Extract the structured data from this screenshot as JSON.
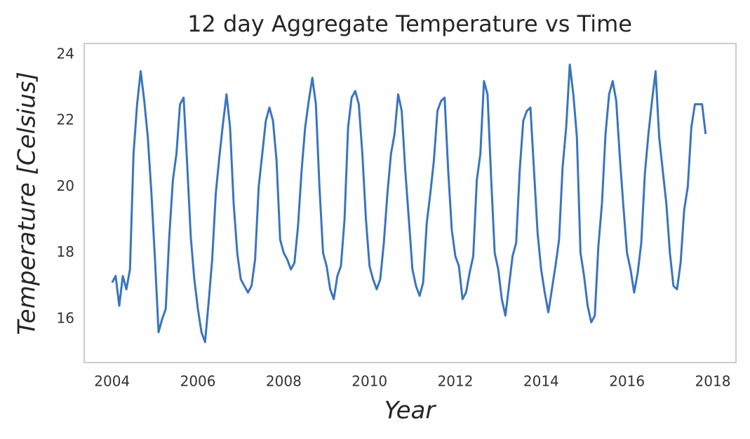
{
  "chart_data": {
    "type": "line",
    "title": "12 day Aggregate Temperature vs Time",
    "xlabel": "Year",
    "ylabel": "Temperature [Celsius]",
    "color": "#3a75be",
    "grid": false,
    "xlim": [
      2003.35,
      2018.54
    ],
    "ylim": [
      14.68,
      24.34
    ],
    "xticks": [
      2004,
      2006,
      2008,
      2010,
      2012,
      2014,
      2016,
      2018
    ],
    "yticks": [
      16,
      18,
      20,
      22,
      24
    ],
    "x": [
      2004.0,
      2004.083,
      2004.167,
      2004.25,
      2004.333,
      2004.417,
      2004.5,
      2004.583,
      2004.667,
      2004.75,
      2004.833,
      2004.917,
      2005.0,
      2005.083,
      2005.167,
      2005.25,
      2005.333,
      2005.417,
      2005.5,
      2005.583,
      2005.667,
      2005.75,
      2005.833,
      2005.917,
      2006.0,
      2006.083,
      2006.167,
      2006.25,
      2006.333,
      2006.417,
      2006.5,
      2006.583,
      2006.667,
      2006.75,
      2006.833,
      2006.917,
      2007.0,
      2007.083,
      2007.167,
      2007.25,
      2007.333,
      2007.417,
      2007.5,
      2007.583,
      2007.667,
      2007.75,
      2007.833,
      2007.917,
      2008.0,
      2008.083,
      2008.167,
      2008.25,
      2008.333,
      2008.417,
      2008.5,
      2008.583,
      2008.667,
      2008.75,
      2008.833,
      2008.917,
      2009.0,
      2009.083,
      2009.167,
      2009.25,
      2009.333,
      2009.417,
      2009.5,
      2009.583,
      2009.667,
      2009.75,
      2009.833,
      2009.917,
      2010.0,
      2010.083,
      2010.167,
      2010.25,
      2010.333,
      2010.417,
      2010.5,
      2010.583,
      2010.667,
      2010.75,
      2010.833,
      2010.917,
      2011.0,
      2011.083,
      2011.167,
      2011.25,
      2011.333,
      2011.417,
      2011.5,
      2011.583,
      2011.667,
      2011.75,
      2011.833,
      2011.917,
      2012.0,
      2012.083,
      2012.167,
      2012.25,
      2012.333,
      2012.417,
      2012.5,
      2012.583,
      2012.667,
      2012.75,
      2012.833,
      2012.917,
      2013.0,
      2013.083,
      2013.167,
      2013.25,
      2013.333,
      2013.417,
      2013.5,
      2013.583,
      2013.667,
      2013.75,
      2013.833,
      2013.917,
      2014.0,
      2014.083,
      2014.167,
      2014.25,
      2014.333,
      2014.417,
      2014.5,
      2014.583,
      2014.667,
      2014.75,
      2014.833,
      2014.917,
      2015.0,
      2015.083,
      2015.167,
      2015.25,
      2015.333,
      2015.417,
      2015.5,
      2015.583,
      2015.667,
      2015.75,
      2015.833,
      2015.917,
      2016.0,
      2016.083,
      2016.167,
      2016.25,
      2016.333,
      2016.417,
      2016.5,
      2016.583,
      2016.667,
      2016.75,
      2016.833,
      2016.917,
      2017.0,
      2017.083,
      2017.167,
      2017.25,
      2017.333,
      2017.417,
      2017.5,
      2017.583,
      2017.667,
      2017.75,
      2017.833
    ],
    "values": [
      17.1,
      17.3,
      16.4,
      17.3,
      16.9,
      17.5,
      21.0,
      22.5,
      23.5,
      22.6,
      21.5,
      19.8,
      17.8,
      15.6,
      16.0,
      16.3,
      18.5,
      20.2,
      21.0,
      22.5,
      22.7,
      20.7,
      18.5,
      17.2,
      16.3,
      15.6,
      15.3,
      16.5,
      17.8,
      19.8,
      20.9,
      21.9,
      22.8,
      21.8,
      19.5,
      18.0,
      17.2,
      17.0,
      16.8,
      17.0,
      17.8,
      20.0,
      21.0,
      22.0,
      22.4,
      22.0,
      20.8,
      18.4,
      18.0,
      17.8,
      17.5,
      17.7,
      18.8,
      20.5,
      21.8,
      22.6,
      23.3,
      22.5,
      20.0,
      18.0,
      17.6,
      16.9,
      16.6,
      17.3,
      17.6,
      19.0,
      21.8,
      22.7,
      22.9,
      22.5,
      21.0,
      19.0,
      17.6,
      17.2,
      16.9,
      17.2,
      18.3,
      19.8,
      21.0,
      21.6,
      22.8,
      22.3,
      20.5,
      19.0,
      17.5,
      17.0,
      16.7,
      17.1,
      18.9,
      19.8,
      20.8,
      22.3,
      22.6,
      22.7,
      20.5,
      18.7,
      17.9,
      17.6,
      16.6,
      16.8,
      17.4,
      17.9,
      20.2,
      21.0,
      23.2,
      22.8,
      20.3,
      18.0,
      17.5,
      16.6,
      16.1,
      17.0,
      17.9,
      18.3,
      20.5,
      22.0,
      22.3,
      22.4,
      20.5,
      18.6,
      17.5,
      16.8,
      16.2,
      16.9,
      17.6,
      18.4,
      20.6,
      21.8,
      23.7,
      22.8,
      21.5,
      18.0,
      17.3,
      16.4,
      15.9,
      16.1,
      18.2,
      19.5,
      21.6,
      22.8,
      23.2,
      22.6,
      20.9,
      19.4,
      18.0,
      17.5,
      16.8,
      17.4,
      18.3,
      20.4,
      21.6,
      22.6,
      23.5,
      21.5,
      20.5,
      19.5,
      18.0,
      17.0,
      16.9,
      17.7,
      19.3,
      20.0,
      21.8,
      22.5,
      22.5,
      22.5,
      21.6
    ]
  }
}
